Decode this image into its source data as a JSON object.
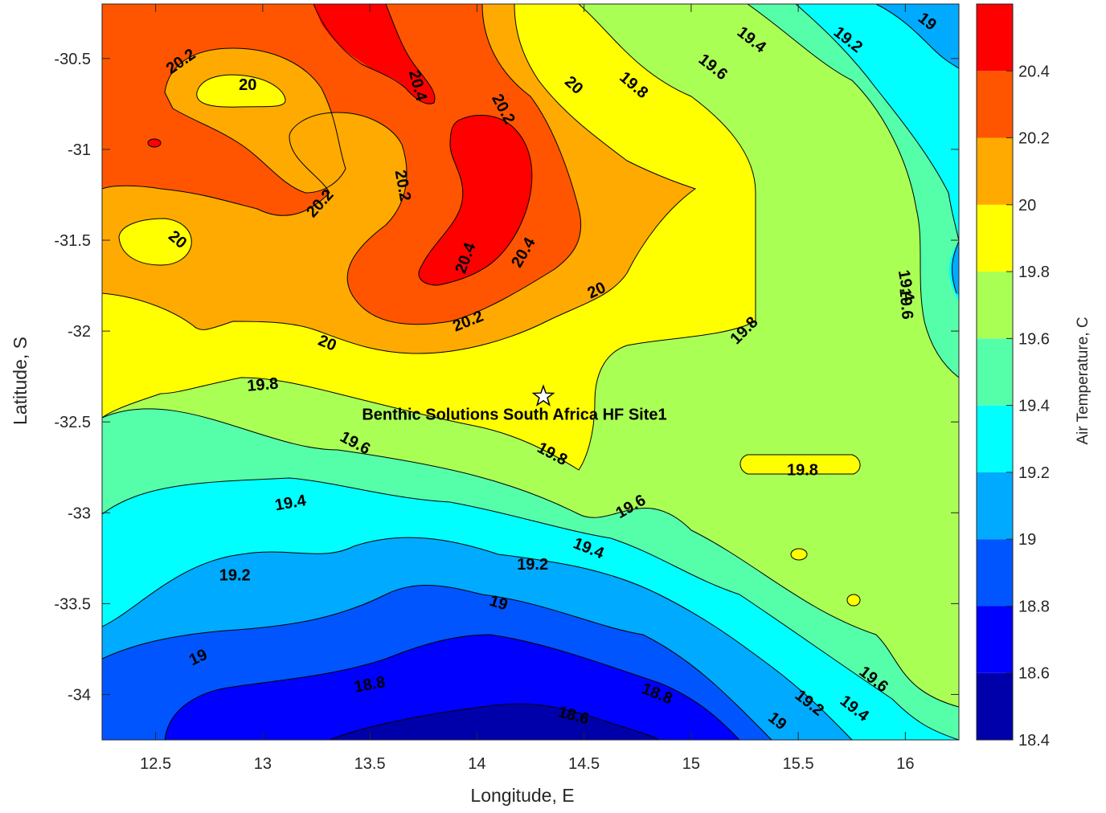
{
  "chart_data": {
    "type": "contour",
    "xlabel": "Longitude, E",
    "ylabel": "Latitude, S",
    "xlim": [
      12.25,
      16.25
    ],
    "ylim": [
      -34.25,
      -30.2
    ],
    "xticks": [
      12.5,
      13,
      13.5,
      14,
      14.5,
      15,
      15.5,
      16
    ],
    "xtick_labels": [
      "12.5",
      "13",
      "13.5",
      "14",
      "14.5",
      "15",
      "15.5",
      "16"
    ],
    "yticks": [
      -30.5,
      -31,
      -31.5,
      -32,
      -32.5,
      -33,
      -33.5,
      -34
    ],
    "ytick_labels": [
      "-30.5",
      "-31",
      "-31.5",
      "-32",
      "-32.5",
      "-33",
      "-33.5",
      "-34"
    ],
    "colorbar": {
      "title": "Air Temperature, C",
      "range": [
        18.4,
        20.6
      ],
      "ticks": [
        18.4,
        18.6,
        18.8,
        19,
        19.2,
        19.4,
        19.6,
        19.8,
        20,
        20.2,
        20.4
      ],
      "tick_labels": [
        "18.4",
        "18.6",
        "18.8",
        "19",
        "19.2",
        "19.4",
        "19.6",
        "19.8",
        "20",
        "20.2",
        "20.4"
      ],
      "levels": [
        {
          "from": 18.4,
          "to": 18.6,
          "color": "#0000aa"
        },
        {
          "from": 18.6,
          "to": 18.8,
          "color": "#0000ff"
        },
        {
          "from": 18.8,
          "to": 19.0,
          "color": "#0055ff"
        },
        {
          "from": 19.0,
          "to": 19.2,
          "color": "#00aaff"
        },
        {
          "from": 19.2,
          "to": 19.4,
          "color": "#00ffff"
        },
        {
          "from": 19.4,
          "to": 19.6,
          "color": "#55ffaa"
        },
        {
          "from": 19.6,
          "to": 19.8,
          "color": "#aaff55"
        },
        {
          "from": 19.8,
          "to": 20.0,
          "color": "#ffff00"
        },
        {
          "from": 20.0,
          "to": 20.2,
          "color": "#ffaa00"
        },
        {
          "from": 20.2,
          "to": 20.4,
          "color": "#ff5500"
        },
        {
          "from": 20.4,
          "to": 20.6,
          "color": "#ff0000"
        },
        {
          "from": 20.6,
          "to": 20.8,
          "color": "#aa0000"
        }
      ]
    },
    "marker": {
      "name": "Benthic Solutions South Africa HF Site1",
      "lon": 14.31,
      "lat": -32.36,
      "symbol": "pentagram"
    },
    "contour_labels": [
      {
        "text": "20.2",
        "lon": 12.62,
        "lat": -30.52,
        "angle": -35
      },
      {
        "text": "20",
        "lon": 12.93,
        "lat": -30.65,
        "angle": 0
      },
      {
        "text": "20.4",
        "lon": 13.72,
        "lat": -30.65,
        "angle": 75
      },
      {
        "text": "20.2",
        "lon": 14.12,
        "lat": -30.78,
        "angle": 62
      },
      {
        "text": "20",
        "lon": 14.45,
        "lat": -30.65,
        "angle": 42
      },
      {
        "text": "19.8",
        "lon": 14.73,
        "lat": -30.65,
        "angle": 40
      },
      {
        "text": "19.6",
        "lon": 15.1,
        "lat": -30.55,
        "angle": 38
      },
      {
        "text": "19.4",
        "lon": 15.28,
        "lat": -30.4,
        "angle": 38
      },
      {
        "text": "19.2",
        "lon": 15.73,
        "lat": -30.4,
        "angle": 38
      },
      {
        "text": "19",
        "lon": 16.1,
        "lat": -30.3,
        "angle": 38
      },
      {
        "text": "20.2",
        "lon": 13.65,
        "lat": -31.2,
        "angle": 80
      },
      {
        "text": "20.2",
        "lon": 13.27,
        "lat": -31.3,
        "angle": -48
      },
      {
        "text": "20",
        "lon": 12.6,
        "lat": -31.5,
        "angle": 40
      },
      {
        "text": "20.4",
        "lon": 13.95,
        "lat": -31.6,
        "angle": -70
      },
      {
        "text": "20.4",
        "lon": 14.22,
        "lat": -31.57,
        "angle": -60
      },
      {
        "text": "20",
        "lon": 14.56,
        "lat": -31.78,
        "angle": -25
      },
      {
        "text": "20.2",
        "lon": 13.96,
        "lat": -31.95,
        "angle": -22
      },
      {
        "text": "19.8",
        "lon": 15.25,
        "lat": -32.0,
        "angle": -45
      },
      {
        "text": "20",
        "lon": 13.3,
        "lat": -32.07,
        "angle": 22
      },
      {
        "text": "19.6",
        "lon": 16.0,
        "lat": -31.85,
        "angle": 85
      },
      {
        "text": "19.4",
        "lon": 16.0,
        "lat": -31.75,
        "angle": 80
      },
      {
        "text": "19.8",
        "lon": 13.0,
        "lat": -32.3,
        "angle": -5
      },
      {
        "text": "19.6",
        "lon": 13.43,
        "lat": -32.62,
        "angle": 28
      },
      {
        "text": "19.8",
        "lon": 14.35,
        "lat": -32.68,
        "angle": 28
      },
      {
        "text": "19.8",
        "lon": 15.52,
        "lat": -32.77,
        "angle": 0
      },
      {
        "text": "19.4",
        "lon": 13.13,
        "lat": -32.95,
        "angle": -10
      },
      {
        "text": "19.6",
        "lon": 14.72,
        "lat": -32.97,
        "angle": -30
      },
      {
        "text": "19.4",
        "lon": 14.52,
        "lat": -33.2,
        "angle": 22
      },
      {
        "text": "19.2",
        "lon": 12.87,
        "lat": -33.35,
        "angle": 0
      },
      {
        "text": "19.2",
        "lon": 14.26,
        "lat": -33.29,
        "angle": 0
      },
      {
        "text": "19",
        "lon": 14.1,
        "lat": -33.5,
        "angle": 18
      },
      {
        "text": "19",
        "lon": 12.7,
        "lat": -33.8,
        "angle": -25
      },
      {
        "text": "18.8",
        "lon": 13.5,
        "lat": -33.95,
        "angle": -10
      },
      {
        "text": "18.8",
        "lon": 14.84,
        "lat": -34.0,
        "angle": 22
      },
      {
        "text": "18.6",
        "lon": 14.45,
        "lat": -34.12,
        "angle": 15
      },
      {
        "text": "19.6",
        "lon": 15.85,
        "lat": -33.92,
        "angle": 38
      },
      {
        "text": "19.4",
        "lon": 15.76,
        "lat": -34.08,
        "angle": 38
      },
      {
        "text": "19.2",
        "lon": 15.55,
        "lat": -34.05,
        "angle": 38
      },
      {
        "text": "19",
        "lon": 15.4,
        "lat": -34.15,
        "angle": 38
      }
    ]
  }
}
